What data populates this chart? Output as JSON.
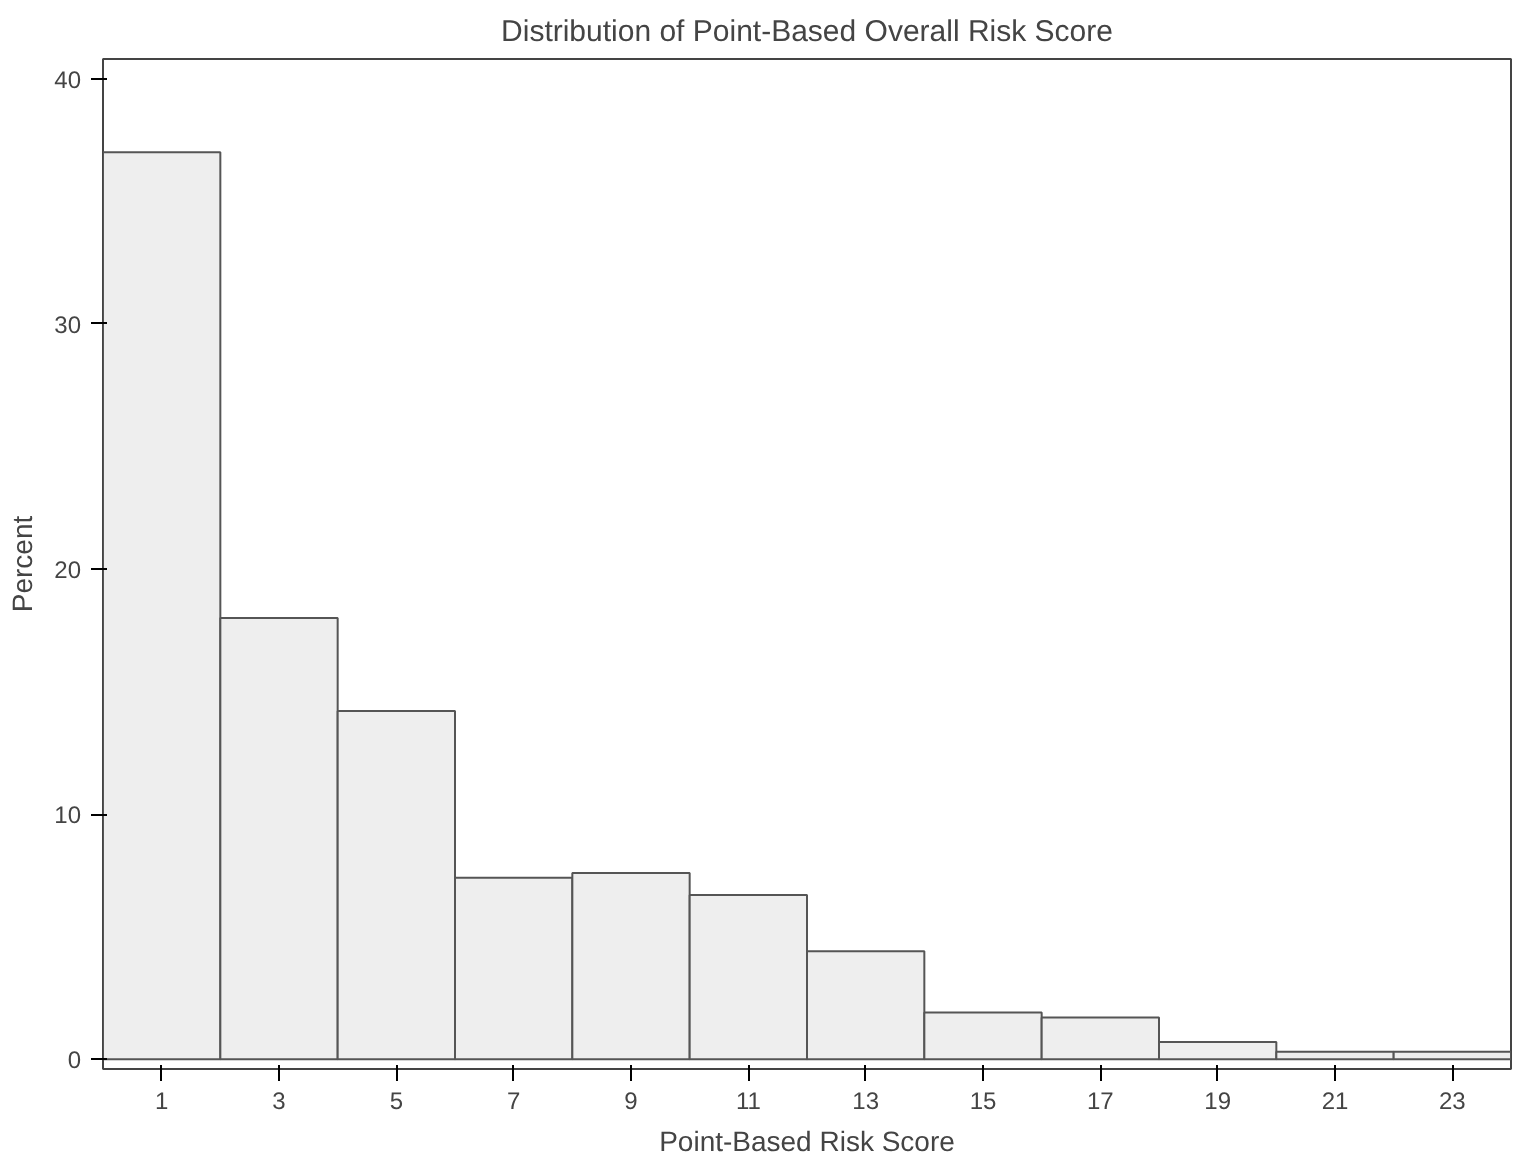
{
  "chart_data": {
    "type": "histogram",
    "title": "Distribution of Point-Based Overall Risk Score",
    "xlabel": "Point-Based Risk Score",
    "ylabel": "Percent",
    "bins": [
      0,
      2,
      4,
      6,
      8,
      10,
      12,
      14,
      16,
      18,
      20,
      22,
      24
    ],
    "values": [
      37.0,
      18.0,
      14.2,
      7.4,
      7.6,
      6.7,
      4.4,
      1.9,
      1.7,
      0.7,
      0.3,
      0.3
    ],
    "color": "#eeeeee",
    "xlim": [
      0,
      24
    ],
    "xticks": [
      1,
      3,
      5,
      7,
      9,
      11,
      13,
      15,
      17,
      19,
      21,
      23
    ],
    "ylim": [
      -0.4,
      40.8
    ],
    "yticks": [
      0,
      10,
      20,
      30,
      40
    ],
    "grid": false
  }
}
